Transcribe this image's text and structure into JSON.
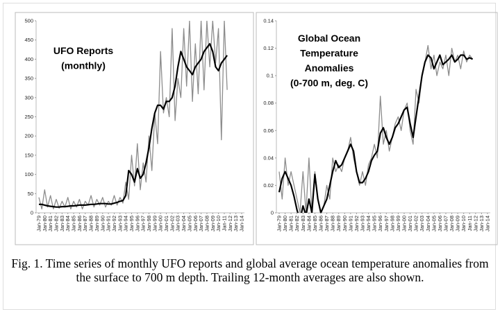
{
  "chart_data": [
    {
      "type": "line",
      "annotation": [
        "UFO Reports",
        "(monthly)"
      ],
      "categories": [
        "Jan-79",
        null,
        "Jan-80",
        null,
        "Jan-81",
        null,
        "Jan-82",
        null,
        "Jan-83",
        null,
        "Jan-84",
        null,
        "Jan-85",
        null,
        "Jan-86",
        null,
        "Jan-87",
        null,
        "Jan-88",
        null,
        "Jan-89",
        null,
        "Jan-90",
        null,
        "Jan-91",
        null,
        "Jan-92",
        null,
        "Jan-93",
        null,
        "Jan-94",
        null,
        "Jan-95",
        null,
        "Jan-96",
        null,
        "Jan-97",
        null,
        "Jan-98",
        null,
        "Jan-99",
        null,
        "Jan-00",
        null,
        "Jan-01",
        null,
        "Jan-02",
        null,
        "Jan-03",
        null,
        "Jan-04",
        null,
        "Jan-05",
        null,
        "Jan-06",
        null,
        "Jan-07",
        null,
        "Jan-08",
        null,
        "Jan-09",
        null,
        "Jan-10",
        null,
        "Jan-11",
        null,
        "Jan-12",
        null,
        "Jan-13",
        null,
        "Jan-14"
      ],
      "series": [
        {
          "color": "#8c8c8c",
          "width": 1.3,
          "values": [
            40,
            10,
            60,
            15,
            45,
            10,
            35,
            12,
            30,
            15,
            40,
            10,
            30,
            15,
            35,
            10,
            30,
            20,
            45,
            15,
            35,
            20,
            40,
            15,
            30,
            20,
            45,
            20,
            40,
            25,
            80,
            35,
            150,
            70,
            180,
            60,
            130,
            80,
            200,
            110,
            260,
            180,
            420,
            260,
            300,
            250,
            480,
            240,
            350,
            300,
            480,
            330,
            500,
            290,
            440,
            310,
            500,
            320,
            500,
            380,
            500,
            390,
            480,
            190,
            500,
            320,
            null,
            null,
            null,
            null,
            null
          ]
        },
        {
          "color": "#000000",
          "width": 2.2,
          "values": [
            22,
            22,
            20,
            18,
            17,
            16,
            15,
            15,
            16,
            16,
            17,
            18,
            18,
            19,
            20,
            20,
            20,
            21,
            22,
            22,
            23,
            24,
            24,
            24,
            23,
            23,
            25,
            27,
            30,
            32,
            45,
            110,
            100,
            80,
            115,
            90,
            100,
            130,
            170,
            220,
            260,
            280,
            280,
            270,
            290,
            290,
            300,
            330,
            380,
            420,
            400,
            380,
            370,
            360,
            380,
            390,
            400,
            420,
            430,
            440,
            420,
            380,
            370,
            390,
            400,
            410,
            null,
            null,
            null,
            null,
            null
          ]
        }
      ],
      "ylim": [
        0,
        500
      ],
      "yticks": [
        0,
        50,
        100,
        150,
        200,
        250,
        300,
        350,
        400,
        450,
        500
      ]
    },
    {
      "type": "line",
      "annotation": [
        "Global Ocean",
        "Temperature",
        "Anomalies",
        "(0-700 m, deg. C)"
      ],
      "categories": [
        "Jan-79",
        null,
        "Jan-80",
        null,
        "Jan-81",
        null,
        "Jan-82",
        null,
        "Jan-83",
        null,
        "Jan-84",
        null,
        "Jan-85",
        null,
        "Jan-86",
        null,
        "Jan-87",
        null,
        "Jan-88",
        null,
        "Jan-89",
        null,
        "Jan-90",
        null,
        "Jan-91",
        null,
        "Jan-92",
        null,
        "Jan-93",
        null,
        "Jan-94",
        null,
        "Jan-95",
        null,
        "Jan-96",
        null,
        "Jan-97",
        null,
        "Jan-98",
        null,
        "Jan-99",
        null,
        "Jan-00",
        null,
        "Jan-01",
        null,
        "Jan-02",
        null,
        "Jan-03",
        null,
        "Jan-04",
        null,
        "Jan-05",
        null,
        "Jan-06",
        null,
        "Jan-07",
        null,
        "Jan-08",
        null,
        "Jan-09",
        null,
        "Jan-10",
        null,
        "Jan-11",
        null,
        "Jan-12",
        null,
        "Jan-13",
        null,
        "Jan-14"
      ],
      "series": [
        {
          "color": "#8c8c8c",
          "width": 1.3,
          "values": [
            0.03,
            0.01,
            0.04,
            0.02,
            0.03,
            0.02,
            0.01,
            0.0,
            0.03,
            0.0,
            0.04,
            0.0,
            0.03,
            0.01,
            0.0,
            0.005,
            0.02,
            0.01,
            0.04,
            0.03,
            0.035,
            0.03,
            0.04,
            0.045,
            0.055,
            0.04,
            0.03,
            0.02,
            0.03,
            0.02,
            0.035,
            0.04,
            0.05,
            0.04,
            0.085,
            0.05,
            0.06,
            0.045,
            0.055,
            0.065,
            0.07,
            0.06,
            0.075,
            0.08,
            0.06,
            0.05,
            0.09,
            0.08,
            0.1,
            0.11,
            0.122,
            0.105,
            0.115,
            0.1,
            0.11,
            0.105,
            0.115,
            0.1,
            0.12,
            0.11,
            0.115,
            0.105,
            0.118,
            0.11,
            0.115,
            0.112,
            null,
            null,
            null,
            null,
            null
          ]
        },
        {
          "color": "#000000",
          "width": 2.2,
          "values": [
            0.015,
            0.025,
            0.03,
            0.025,
            0.02,
            0.012,
            0.002,
            -0.005,
            0.005,
            -0.002,
            0.01,
            0.0,
            0.028,
            0.01,
            0.0,
            0.005,
            0.01,
            0.02,
            0.03,
            0.038,
            0.033,
            0.035,
            0.04,
            0.045,
            0.05,
            0.045,
            0.03,
            0.022,
            0.022,
            0.025,
            0.03,
            0.038,
            0.042,
            0.045,
            0.058,
            0.062,
            0.055,
            0.05,
            0.055,
            0.062,
            0.065,
            0.07,
            0.075,
            0.077,
            0.065,
            0.055,
            0.07,
            0.085,
            0.1,
            0.11,
            0.115,
            0.113,
            0.105,
            0.11,
            0.115,
            0.108,
            0.11,
            0.112,
            0.115,
            0.11,
            0.112,
            0.115,
            0.115,
            0.112,
            0.113,
            0.112,
            null,
            null,
            null,
            null,
            null
          ]
        }
      ],
      "ylim": [
        0,
        0.14
      ],
      "yticks": [
        0,
        0.02,
        0.04,
        0.06,
        0.08,
        0.1,
        0.12,
        0.14
      ]
    }
  ],
  "caption": "Fig. 1. Time series of monthly UFO reports and global average ocean temperature anomalies from the surface to 700 m depth. Trailing 12-month averages are also shown."
}
